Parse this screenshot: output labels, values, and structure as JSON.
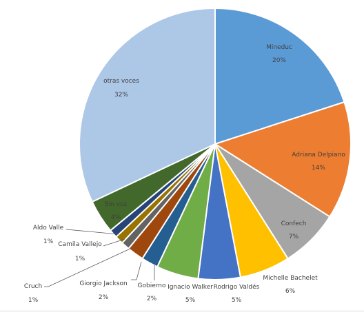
{
  "chart_data": {
    "type": "pie",
    "title": "",
    "start_angle_deg": 0,
    "direction": "clockwise",
    "slices": [
      {
        "label": "Mineduc",
        "value": 20,
        "value_label": "20%",
        "color": "#5B9BD5"
      },
      {
        "label": "Adriana Delpiano",
        "value": 14,
        "value_label": "14%",
        "color": "#ED7D31"
      },
      {
        "label": "Confech",
        "value": 7,
        "value_label": "7%",
        "color": "#A5A5A5"
      },
      {
        "label": "Michelle Bachelet",
        "value": 6,
        "value_label": "6%",
        "color": "#FFC000"
      },
      {
        "label": "Rodrigo Valdés",
        "value": 5,
        "value_label": "5%",
        "color": "#4472C4"
      },
      {
        "label": "Ignacio Walker",
        "value": 5,
        "value_label": "5%",
        "color": "#70AD47"
      },
      {
        "label": "Gobierno",
        "value": 2,
        "value_label": "2%",
        "color": "#255E91"
      },
      {
        "label": "Giorgio Jackson",
        "value": 2,
        "value_label": "2%",
        "color": "#9E480E"
      },
      {
        "label": "Cruch",
        "value": 1,
        "value_label": "1%",
        "color": "#636363"
      },
      {
        "label": "Camila Vallejo",
        "value": 1,
        "value_label": "1%",
        "color": "#997300"
      },
      {
        "label": "Aldo Valle",
        "value": 1,
        "value_label": "1%",
        "color": "#264478"
      },
      {
        "label": "Sin voz",
        "value": 4,
        "value_label": "4%",
        "color": "#43682B"
      },
      {
        "label": "otras voces",
        "value": 32,
        "value_label": "32%",
        "color": "#ADC7E7"
      }
    ],
    "legend": "none"
  }
}
